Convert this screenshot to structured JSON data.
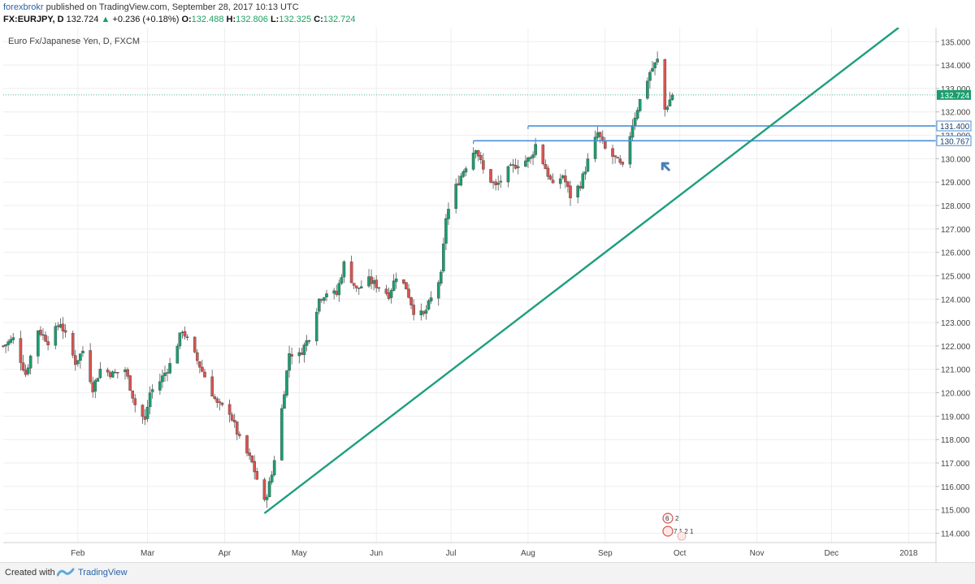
{
  "header": {
    "author": "forexbrokr",
    "published": "published on TradingView.com, September 28, 2017 10:13 UTC",
    "symbol": "FX:EURJPY, D",
    "last": "132.724",
    "change": "+0.236 (+0.18%)",
    "open_label": "O:",
    "open": "132.488",
    "high_label": "H:",
    "high": "132.806",
    "low_label": "L:",
    "low": "132.325",
    "close_label": "C:",
    "close": "132.724"
  },
  "footer": {
    "created": "Created with",
    "brand": "TradingView"
  },
  "colors": {
    "up": "#1a9e6e",
    "down": "#d9534f",
    "trendline": "#1e9e7f",
    "level": "#4a90d9",
    "grid": "#eeeeee",
    "price_tag": "#4a7fb5"
  },
  "chart_data": {
    "type": "candlestick",
    "title": "Euro Fx/Japanese Yen, D, FXCM",
    "ylim": [
      113.6,
      135.6
    ],
    "y_ticks": [
      "114.000",
      "115.000",
      "116.000",
      "117.000",
      "118.000",
      "119.000",
      "120.000",
      "121.000",
      "122.000",
      "123.000",
      "124.000",
      "125.000",
      "126.000",
      "127.000",
      "128.000",
      "129.000",
      "130.000",
      "131.000",
      "132.000",
      "133.000",
      "134.000",
      "135.000"
    ],
    "x_ticks": [
      {
        "label": "Feb",
        "date": "2017-02-01"
      },
      {
        "label": "Mar",
        "date": "2017-03-01"
      },
      {
        "label": "Apr",
        "date": "2017-04-01"
      },
      {
        "label": "May",
        "date": "2017-05-01"
      },
      {
        "label": "Jun",
        "date": "2017-06-01"
      },
      {
        "label": "Jul",
        "date": "2017-07-01"
      },
      {
        "label": "Aug",
        "date": "2017-08-01"
      },
      {
        "label": "Sep",
        "date": "2017-09-01"
      },
      {
        "label": "Oct",
        "date": "2017-10-01"
      },
      {
        "label": "Nov",
        "date": "2017-11-01"
      },
      {
        "label": "Dec",
        "date": "2017-12-01"
      },
      {
        "label": "2018",
        "date": "2018-01-01"
      }
    ],
    "x_start": "2017-01-02",
    "x_end": "2018-01-12",
    "price_path": [
      [
        "2017-01-02",
        122.0
      ],
      [
        "2017-01-06",
        122.3
      ],
      [
        "2017-01-11",
        120.8
      ],
      [
        "2017-01-16",
        122.7
      ],
      [
        "2017-01-20",
        122.2
      ],
      [
        "2017-01-25",
        123.0
      ],
      [
        "2017-01-31",
        121.3
      ],
      [
        "2017-02-03",
        121.8
      ],
      [
        "2017-02-07",
        120.2
      ],
      [
        "2017-02-10",
        121.0
      ],
      [
        "2017-02-15",
        120.8
      ],
      [
        "2017-02-20",
        121.0
      ],
      [
        "2017-02-24",
        119.5
      ],
      [
        "2017-02-28",
        118.8
      ],
      [
        "2017-03-02",
        120.0
      ],
      [
        "2017-03-06",
        120.5
      ],
      [
        "2017-03-10",
        121.2
      ],
      [
        "2017-03-15",
        122.7
      ],
      [
        "2017-03-20",
        121.6
      ],
      [
        "2017-03-24",
        120.7
      ],
      [
        "2017-03-29",
        119.5
      ],
      [
        "2017-04-03",
        119.2
      ],
      [
        "2017-04-07",
        118.0
      ],
      [
        "2017-04-12",
        117.0
      ],
      [
        "2017-04-17",
        115.3
      ],
      [
        "2017-04-20",
        116.5
      ],
      [
        "2017-04-24",
        119.3
      ],
      [
        "2017-04-27",
        121.7
      ],
      [
        "2017-05-01",
        121.6
      ],
      [
        "2017-05-05",
        122.4
      ],
      [
        "2017-05-09",
        124.0
      ],
      [
        "2017-05-12",
        124.3
      ],
      [
        "2017-05-16",
        124.2
      ],
      [
        "2017-05-19",
        125.5
      ],
      [
        "2017-05-24",
        124.4
      ],
      [
        "2017-05-29",
        124.8
      ],
      [
        "2017-06-01",
        124.6
      ],
      [
        "2017-06-06",
        124.2
      ],
      [
        "2017-06-09",
        125.0
      ],
      [
        "2017-06-13",
        124.5
      ],
      [
        "2017-06-16",
        123.5
      ],
      [
        "2017-06-20",
        123.3
      ],
      [
        "2017-06-23",
        124.0
      ],
      [
        "2017-06-27",
        125.0
      ],
      [
        "2017-06-29",
        127.5
      ],
      [
        "2017-07-03",
        128.8
      ],
      [
        "2017-07-06",
        129.5
      ],
      [
        "2017-07-11",
        130.5
      ],
      [
        "2017-07-14",
        129.5
      ],
      [
        "2017-07-19",
        128.8
      ],
      [
        "2017-07-24",
        129.5
      ],
      [
        "2017-07-28",
        129.8
      ],
      [
        "2017-08-02",
        130.0
      ],
      [
        "2017-08-04",
        130.6
      ],
      [
        "2017-08-08",
        129.6
      ],
      [
        "2017-08-11",
        128.8
      ],
      [
        "2017-08-15",
        129.3
      ],
      [
        "2017-08-18",
        128.4
      ],
      [
        "2017-08-22",
        128.9
      ],
      [
        "2017-08-25",
        129.9
      ],
      [
        "2017-08-29",
        131.1
      ],
      [
        "2017-09-01",
        130.4
      ],
      [
        "2017-09-05",
        130.0
      ],
      [
        "2017-09-08",
        129.6
      ],
      [
        "2017-09-12",
        131.5
      ],
      [
        "2017-09-15",
        132.5
      ],
      [
        "2017-09-19",
        133.7
      ],
      [
        "2017-09-22",
        134.2
      ],
      [
        "2017-09-25",
        132.1
      ],
      [
        "2017-09-28",
        132.72
      ]
    ],
    "last_price": 132.724,
    "last_price_label": "132.724",
    "horizontal_levels": [
      {
        "price": 131.4,
        "label": "131.400",
        "start": "2017-08-01"
      },
      {
        "price": 130.767,
        "label": "130.767",
        "start": "2017-07-10"
      }
    ],
    "trendline": {
      "start": [
        "2017-04-17",
        114.85
      ],
      "end": [
        "2017-12-28",
        135.6
      ]
    },
    "arrow": {
      "date": "2017-09-24",
      "price": 129.8
    },
    "grid": true
  }
}
